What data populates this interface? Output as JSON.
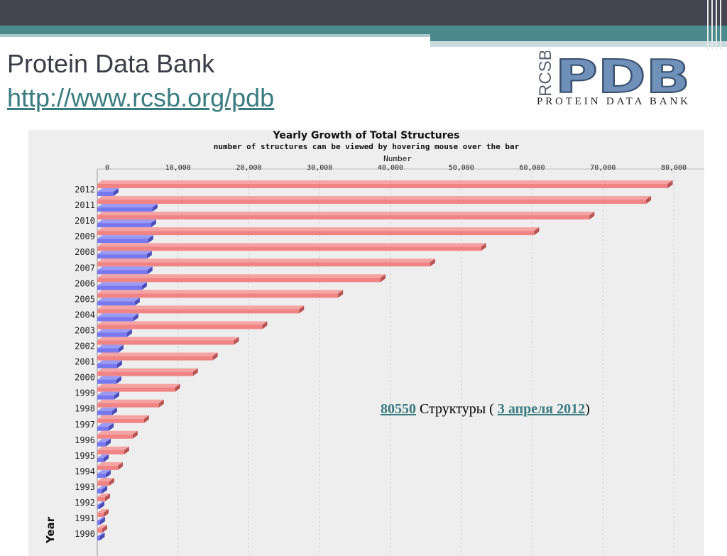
{
  "slide": {
    "title": "Protein Data Bank",
    "link": "http://www.rcsb.org/pdb"
  },
  "logo": {
    "side_text": "RCSB",
    "main_text": "PDB",
    "sub_text": "PROTEIN DATA BANK"
  },
  "note": {
    "count": "80550",
    "text_before": " Структуры ( ",
    "date": "3 апреля 2012",
    "text_after": ")"
  },
  "colors": {
    "total_bar": "#f08484",
    "yearly_bar": "#7777ee",
    "accent": "#4a8a8c",
    "header": "#444450"
  },
  "chart_data": {
    "type": "bar",
    "title": "Yearly Growth of Total Structures",
    "subtitle": "number of structures can be viewed by hovering mouse over the bar",
    "xlabel": "Number",
    "ylabel": "Year",
    "xlim": [
      0,
      80000
    ],
    "xticks": [
      "0",
      "10,000",
      "20,000",
      "30,000",
      "40,000",
      "50,000",
      "60,000",
      "70,000",
      "80,000"
    ],
    "categories": [
      "2012",
      "2011",
      "2010",
      "2009",
      "2008",
      "2007",
      "2006",
      "2005",
      "2004",
      "2003",
      "2002",
      "2001",
      "2000",
      "1999",
      "1998",
      "1997",
      "1996",
      "1995",
      "1994",
      "1993",
      "1992",
      "1991",
      "1990"
    ],
    "series": [
      {
        "values": [
          80550,
          77500,
          69500,
          61700,
          54200,
          47000,
          40000,
          34000,
          28500,
          23300,
          19300,
          16300,
          13500,
          11000,
          8700,
          6600,
          5000,
          3800,
          2900,
          1700,
          1100,
          900,
          700
        ]
      },
      {
        "values": [
          2300,
          7800,
          7600,
          7200,
          7000,
          7100,
          6300,
          5300,
          5100,
          4200,
          3000,
          2800,
          2700,
          2400,
          2100,
          1600,
          1200,
          900,
          1200,
          700,
          300,
          400,
          350
        ]
      }
    ],
    "grid": true
  }
}
